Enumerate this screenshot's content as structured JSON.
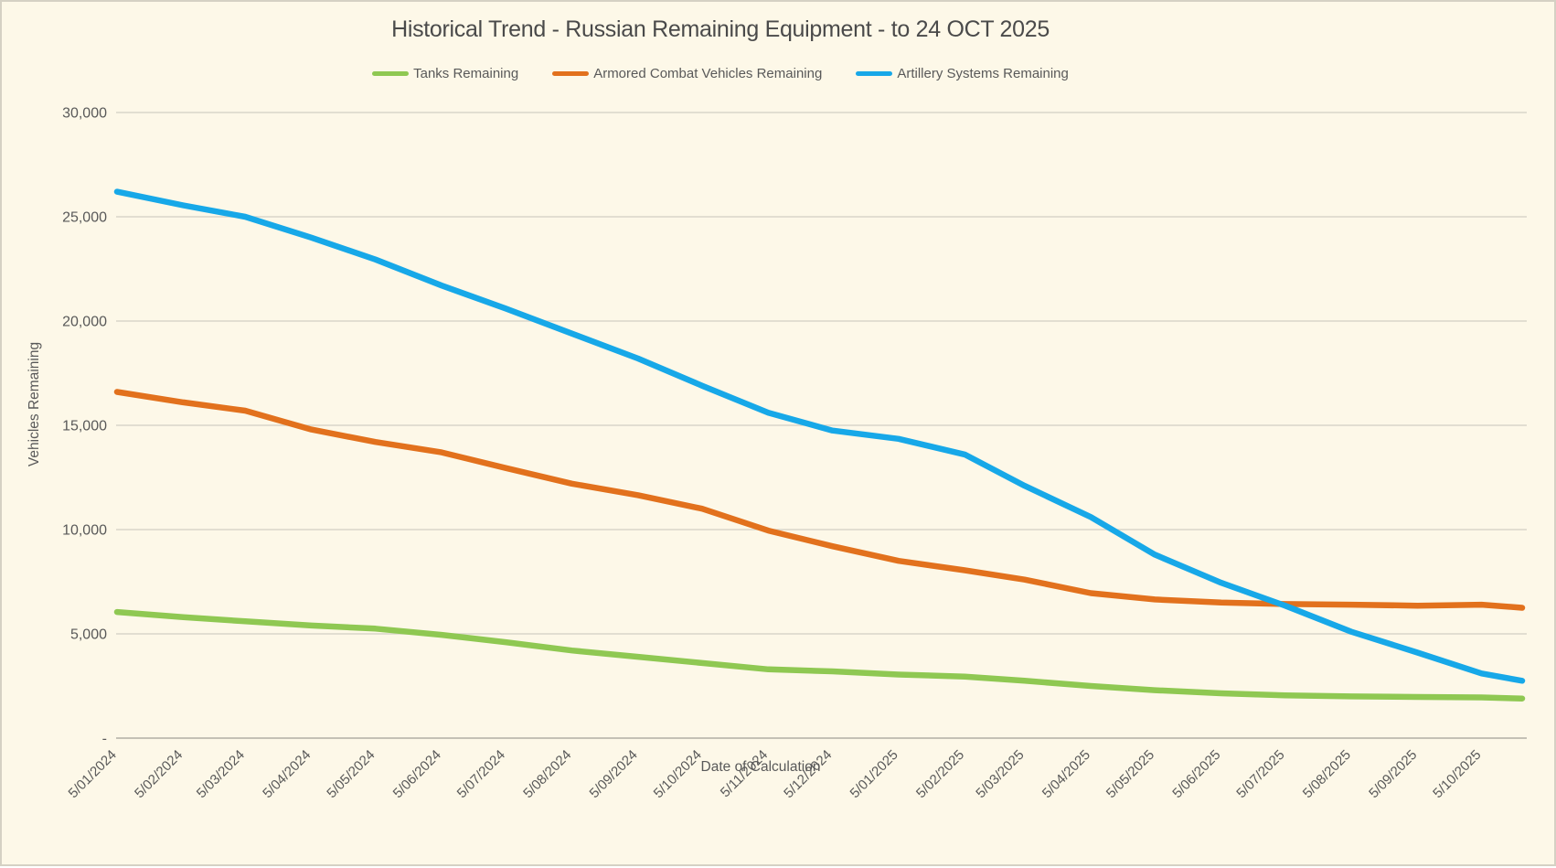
{
  "chart_data": {
    "type": "line",
    "title": "Historical Trend - Russian Remaining Equipment - to 24 OCT 2025",
    "xlabel": "Date of Calculation",
    "ylabel": "Vehicles Remaining",
    "background_color": "#FDF8E8",
    "grid_color": "#D9D5C9",
    "axis_line_color": "#C4C1B5",
    "text_color": "#595959",
    "grid": true,
    "legend_position": "top-center",
    "ylim": [
      0,
      30000
    ],
    "ytick_interval": 5000,
    "y_ticks": [
      {
        "value": 0,
        "label": "-"
      },
      {
        "value": 5000,
        "label": "5,000"
      },
      {
        "value": 10000,
        "label": "10,000"
      },
      {
        "value": 15000,
        "label": "15,000"
      },
      {
        "value": 20000,
        "label": "20,000"
      },
      {
        "value": 25000,
        "label": "25,000"
      },
      {
        "value": 30000,
        "label": "30,000"
      }
    ],
    "x_tick_labels": [
      "5/01/2024",
      "5/02/2024",
      "5/03/2024",
      "5/04/2024",
      "5/05/2024",
      "5/06/2024",
      "5/07/2024",
      "5/08/2024",
      "5/09/2024",
      "5/10/2024",
      "5/11/2024",
      "5/12/2024",
      "5/01/2025",
      "5/02/2025",
      "5/03/2025",
      "5/04/2025",
      "5/05/2025",
      "5/06/2025",
      "5/07/2025",
      "5/08/2025",
      "5/09/2025",
      "5/10/2025"
    ],
    "x_tick_days": [
      0,
      31,
      60,
      91,
      121,
      152,
      182,
      213,
      244,
      274,
      305,
      335,
      366,
      397,
      425,
      456,
      486,
      517,
      547,
      578,
      609,
      639
    ],
    "x_days": [
      0,
      31,
      60,
      91,
      121,
      152,
      182,
      213,
      244,
      274,
      305,
      335,
      366,
      397,
      425,
      456,
      486,
      517,
      547,
      578,
      609,
      639,
      658
    ],
    "end_date_label": "24 OCT 2025",
    "series": [
      {
        "name": "Tanks Remaining",
        "color": "#8FC852",
        "values": [
          6050,
          5800,
          5600,
          5400,
          5250,
          4950,
          4600,
          4200,
          3900,
          3600,
          3300,
          3200,
          3050,
          2950,
          2750,
          2500,
          2300,
          2150,
          2050,
          2000,
          1975,
          1950,
          1900
        ]
      },
      {
        "name": "Armored Combat Vehicles Remaining",
        "color": "#E2711D",
        "values": [
          16600,
          16100,
          15700,
          14800,
          14200,
          13700,
          12950,
          12200,
          11650,
          11000,
          9950,
          9200,
          8500,
          8050,
          7600,
          6950,
          6650,
          6500,
          6430,
          6400,
          6350,
          6400,
          6250
        ]
      },
      {
        "name": "Artillery Systems Remaining",
        "color": "#17A8E8",
        "values": [
          26200,
          25550,
          25000,
          24000,
          22950,
          21700,
          20600,
          19400,
          18200,
          16900,
          15600,
          14750,
          14350,
          13600,
          12100,
          10600,
          8800,
          7450,
          6350,
          5100,
          4100,
          3100,
          2750
        ]
      }
    ]
  }
}
